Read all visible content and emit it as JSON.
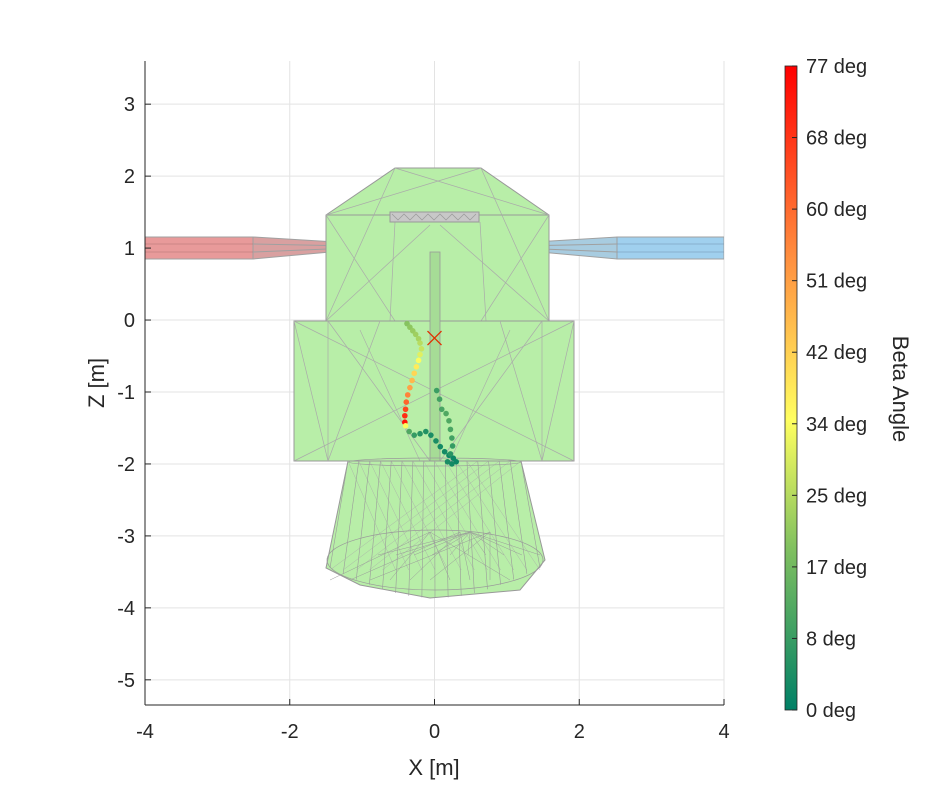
{
  "chart_data": {
    "type": "scatter",
    "title": "",
    "xlabel": "X [m]",
    "ylabel": "Z [m]",
    "xlim": [
      -4,
      4
    ],
    "ylim": [
      -5.35,
      3.6
    ],
    "xticks": [
      "-4",
      "-2",
      "0",
      "2",
      "4"
    ],
    "yticks": [
      "3",
      "2",
      "1",
      "0",
      "-1",
      "-2",
      "-3",
      "-4",
      "-5"
    ],
    "grid": true,
    "colorbar": {
      "label": "Beta Angle",
      "range": [
        0,
        77
      ],
      "ticks": [
        "77 deg",
        "68 deg",
        "60 deg",
        "51 deg",
        "42 deg",
        "34 deg",
        "25 deg",
        "17 deg",
        "8 deg",
        "0 deg"
      ],
      "colors": [
        "#008066",
        "#80c060",
        "#ffff60",
        "#ff9040",
        "#ff0000"
      ]
    },
    "marker": {
      "x": 0,
      "z": -0.25,
      "symbol": "x",
      "color": "#e03000"
    },
    "series": [
      {
        "points": [
          {
            "x": -0.38,
            "z": -0.05,
            "beta": 20
          },
          {
            "x": -0.34,
            "z": -0.1,
            "beta": 21
          },
          {
            "x": -0.3,
            "z": -0.15,
            "beta": 22
          },
          {
            "x": -0.26,
            "z": -0.2,
            "beta": 23
          },
          {
            "x": -0.22,
            "z": -0.26,
            "beta": 24
          },
          {
            "x": -0.2,
            "z": -0.32,
            "beta": 26
          },
          {
            "x": -0.18,
            "z": -0.4,
            "beta": 28
          },
          {
            "x": -0.2,
            "z": -0.48,
            "beta": 31
          },
          {
            "x": -0.22,
            "z": -0.56,
            "beta": 34
          },
          {
            "x": -0.25,
            "z": -0.65,
            "beta": 38
          },
          {
            "x": -0.28,
            "z": -0.74,
            "beta": 42
          },
          {
            "x": -0.31,
            "z": -0.84,
            "beta": 47
          },
          {
            "x": -0.34,
            "z": -0.94,
            "beta": 51
          },
          {
            "x": -0.37,
            "z": -1.04,
            "beta": 56
          },
          {
            "x": -0.39,
            "z": -1.14,
            "beta": 61
          },
          {
            "x": -0.4,
            "z": -1.24,
            "beta": 66
          },
          {
            "x": -0.41,
            "z": -1.33,
            "beta": 70
          },
          {
            "x": -0.41,
            "z": -1.42,
            "beta": 74
          },
          {
            "x": -0.4,
            "z": -1.47,
            "beta": 34
          },
          {
            "x": -0.35,
            "z": -1.55,
            "beta": 12
          },
          {
            "x": -0.28,
            "z": -1.6,
            "beta": 8
          },
          {
            "x": -0.2,
            "z": -1.58,
            "beta": 6
          },
          {
            "x": -0.12,
            "z": -1.55,
            "beta": 5
          },
          {
            "x": -0.05,
            "z": -1.6,
            "beta": 4
          },
          {
            "x": 0.02,
            "z": -1.68,
            "beta": 4
          },
          {
            "x": 0.08,
            "z": -1.76,
            "beta": 3
          },
          {
            "x": 0.14,
            "z": -1.83,
            "beta": 3
          },
          {
            "x": 0.2,
            "z": -1.88,
            "beta": 2
          },
          {
            "x": 0.26,
            "z": -1.92,
            "beta": 2
          },
          {
            "x": 0.3,
            "z": -1.97,
            "beta": 2
          },
          {
            "x": 0.24,
            "z": -2.0,
            "beta": 3
          },
          {
            "x": 0.18,
            "z": -1.97,
            "beta": 4
          },
          {
            "x": 0.22,
            "z": -1.86,
            "beta": 6
          },
          {
            "x": 0.25,
            "z": -1.75,
            "beta": 8
          },
          {
            "x": 0.24,
            "z": -1.64,
            "beta": 10
          },
          {
            "x": 0.22,
            "z": -1.52,
            "beta": 11
          },
          {
            "x": 0.2,
            "z": -1.4,
            "beta": 12
          },
          {
            "x": 0.16,
            "z": -1.3,
            "beta": 12
          },
          {
            "x": 0.1,
            "z": -1.24,
            "beta": 11
          },
          {
            "x": 0.07,
            "z": -1.1,
            "beta": 10
          },
          {
            "x": 0.03,
            "z": -0.98,
            "beta": 9
          }
        ]
      }
    ]
  }
}
